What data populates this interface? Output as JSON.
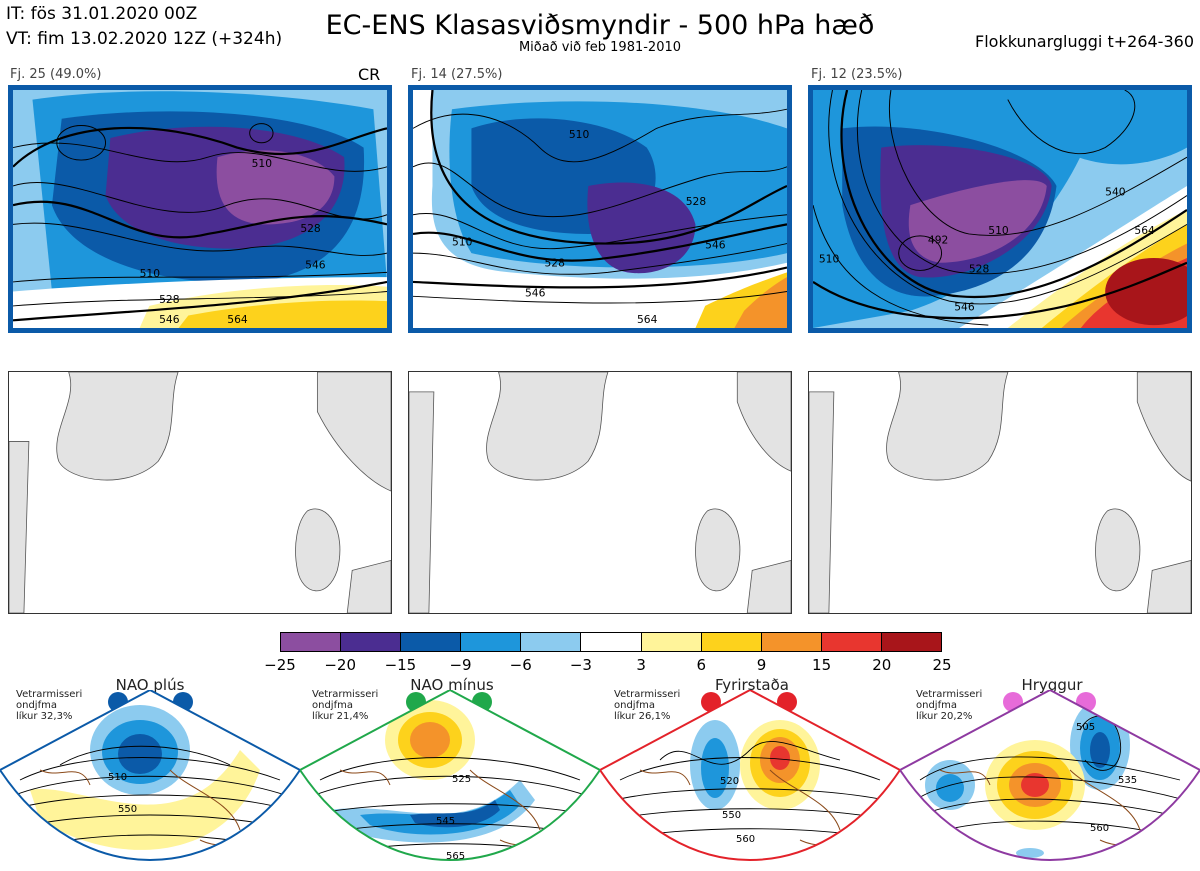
{
  "header": {
    "issue_time": "IT: fös 31.01.2020 00Z",
    "valid_time": "VT: fim 13.02.2020 12Z  (+324h)",
    "title": "EC-ENS Klasasviðsmyndir - 500 hPa hæð",
    "subtitle": "Miðað við feb 1981-2010",
    "window": "Flokkunargluggi t+264-360"
  },
  "clusters": [
    {
      "label": "Fj. 25 (49.0%)",
      "tag": "CR",
      "contours": [
        "510",
        "510",
        "528",
        "528",
        "546",
        "546",
        "564"
      ]
    },
    {
      "label": "Fj. 14 (27.5%)",
      "contours": [
        "510",
        "510",
        "528",
        "528",
        "546",
        "546",
        "564"
      ]
    },
    {
      "label": "Fj. 12 (23.5%)",
      "contours": [
        "510",
        "492",
        "510",
        "528",
        "546",
        "540",
        "564"
      ]
    }
  ],
  "colorbar": {
    "ticks": [
      "−25",
      "−20",
      "−15",
      "−9",
      "−6",
      "−3",
      "3",
      "6",
      "9",
      "15",
      "20",
      "25"
    ],
    "colors": [
      "#8c4ea0",
      "#4b2d91",
      "#0b5aa8",
      "#1e96db",
      "#8ccbef",
      "#ffffff",
      "#fff49a",
      "#fdd21c",
      "#f4932a",
      "#e8362f",
      "#a8151a"
    ]
  },
  "regimes": [
    {
      "name": "NAO plús",
      "note": [
        "Vetrarmisseri",
        "ondjfma",
        "líkur 32,3%"
      ],
      "color": "#0b5aa8",
      "labels": [
        "510",
        "550"
      ]
    },
    {
      "name": "NAO mínus",
      "note": [
        "Vetrarmisseri",
        "ondjfma",
        "líkur 21,4%"
      ],
      "color": "#20a84b",
      "labels": [
        "525",
        "545",
        "565"
      ]
    },
    {
      "name": "Fyrirstaða",
      "note": [
        "Vetrarmisseri",
        "ondjfma",
        "líkur 26,1%"
      ],
      "color": "#e3222a",
      "labels": [
        "520",
        "550",
        "560"
      ]
    },
    {
      "name": "Hryggur",
      "note": [
        "Vetrarmisseri",
        "ondjfma",
        "líkur 20,2%"
      ],
      "color": "#e76bd9",
      "labels": [
        "505",
        "535",
        "560"
      ]
    }
  ]
}
